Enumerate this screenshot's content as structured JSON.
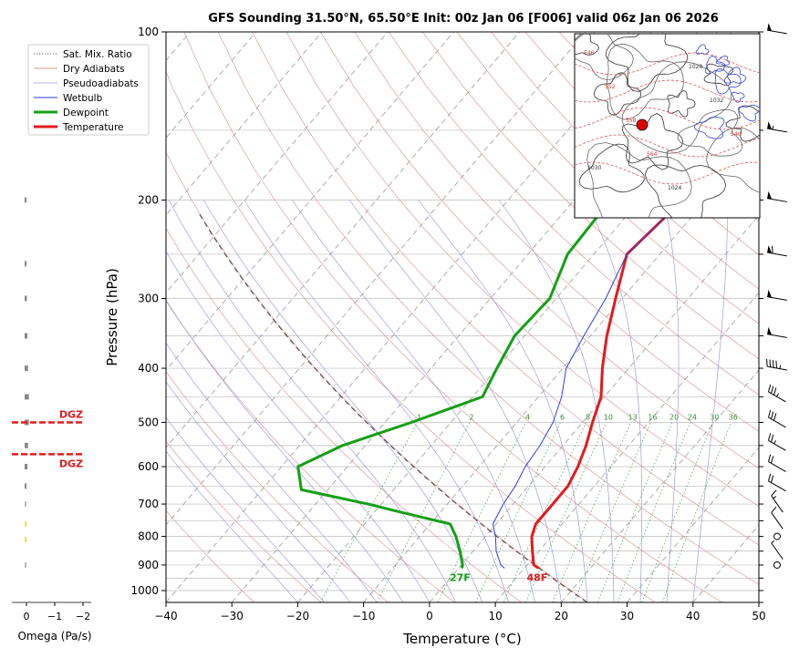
{
  "chart_data": {
    "type": "line",
    "title": "GFS Sounding 31.50°N, 65.50°E Init: 00z Jan 06 [F006] valid 06z Jan 06 2026",
    "xlabel": "Temperature (°C)",
    "ylabel": "Pressure (hPa)",
    "x_ticks": [
      "−40",
      "−30",
      "−20",
      "−10",
      "0",
      "10",
      "20",
      "30",
      "40",
      "50"
    ],
    "x_tick_values": [
      -40,
      -30,
      -20,
      -10,
      0,
      10,
      20,
      30,
      40,
      50
    ],
    "y_ticks": [
      "100",
      "200",
      "300",
      "400",
      "500",
      "600",
      "700",
      "800",
      "900",
      "1000"
    ],
    "y_tick_values": [
      100,
      200,
      300,
      400,
      500,
      600,
      700,
      800,
      900,
      1000
    ],
    "xlim": [
      -40,
      50
    ],
    "ylim": [
      1050,
      100
    ],
    "y_scale": "log",
    "legend": {
      "placement": "upper-left",
      "entries": [
        {
          "label": "Sat. Mix. Ratio",
          "color": "#555555",
          "style": "dotted"
        },
        {
          "label": "Dry Adiabats",
          "color": "#c0392b",
          "style": "solid-thin"
        },
        {
          "label": "Pseudoadiabats",
          "color": "#6a6acf",
          "style": "solid-thin"
        },
        {
          "label": "Wetbulb",
          "color": "#2b3fe0",
          "style": "solid"
        },
        {
          "label": "Dewpoint",
          "color": "#13a013",
          "style": "thick"
        },
        {
          "label": "Temperature",
          "color": "#e31a1c",
          "style": "thick"
        }
      ]
    },
    "series": [
      {
        "name": "Temperature",
        "color": "#e31a1c",
        "points": [
          [
            912,
            12.2
          ],
          [
            900,
            11.0
          ],
          [
            850,
            9.0
          ],
          [
            800,
            7.0
          ],
          [
            760,
            6.0
          ],
          [
            700,
            6.0
          ],
          [
            650,
            6.0
          ],
          [
            600,
            5.0
          ],
          [
            550,
            3.5
          ],
          [
            500,
            1.5
          ],
          [
            450,
            -0.5
          ],
          [
            400,
            -4.0
          ],
          [
            350,
            -7.5
          ],
          [
            300,
            -11.0
          ],
          [
            250,
            -15.0
          ],
          [
            200,
            -13.5
          ],
          [
            150,
            -7.0
          ],
          [
            100,
            1.5
          ]
        ]
      },
      {
        "name": "Dewpoint",
        "color": "#13a013",
        "points": [
          [
            912,
            0.5
          ],
          [
            900,
            0.2
          ],
          [
            850,
            -2.0
          ],
          [
            800,
            -4.5
          ],
          [
            760,
            -7.0
          ],
          [
            720,
            -17.0
          ],
          [
            700,
            -22.0
          ],
          [
            660,
            -34.0
          ],
          [
            600,
            -37.5
          ],
          [
            550,
            -33.5
          ],
          [
            500,
            -26.0
          ],
          [
            450,
            -18.5
          ],
          [
            400,
            -20.0
          ],
          [
            350,
            -21.5
          ],
          [
            300,
            -21.0
          ],
          [
            250,
            -24.0
          ],
          [
            200,
            -24.5
          ],
          [
            150,
            -25.0
          ],
          [
            100,
            -22.0
          ]
        ]
      },
      {
        "name": "Wetbulb",
        "color": "#2b3fe0",
        "points": [
          [
            912,
            7.0
          ],
          [
            900,
            6.0
          ],
          [
            850,
            3.5
          ],
          [
            800,
            1.5
          ],
          [
            760,
            -0.5
          ],
          [
            700,
            -1.5
          ],
          [
            650,
            -2.0
          ],
          [
            600,
            -3.0
          ],
          [
            550,
            -3.5
          ],
          [
            500,
            -4.5
          ],
          [
            450,
            -6.5
          ],
          [
            400,
            -9.5
          ],
          [
            350,
            -11.0
          ],
          [
            300,
            -12.5
          ],
          [
            250,
            -15.0
          ],
          [
            200,
            -13.5
          ],
          [
            150,
            -7.2
          ],
          [
            100,
            1.3
          ]
        ]
      }
    ],
    "annotations": [
      {
        "text": "27F",
        "color": "#13a013"
      },
      {
        "text": "48F",
        "color": "#e31a1c"
      }
    ],
    "mixing_ratio_labels": [
      "1",
      "2",
      "4",
      "6",
      "8",
      "10",
      "13",
      "16",
      "20",
      "24",
      "30",
      "36"
    ],
    "wind_barbs_kts": [
      {
        "p": 100,
        "speed": 50
      },
      {
        "p": 150,
        "speed": 55
      },
      {
        "p": 200,
        "speed": 50
      },
      {
        "p": 250,
        "speed": 60
      },
      {
        "p": 300,
        "speed": 50
      },
      {
        "p": 350,
        "speed": 50
      },
      {
        "p": 400,
        "speed": 45
      },
      {
        "p": 450,
        "speed": 35
      },
      {
        "p": 500,
        "speed": 30
      },
      {
        "p": 550,
        "speed": 25
      },
      {
        "p": 600,
        "speed": 20
      },
      {
        "p": 650,
        "speed": 20
      },
      {
        "p": 700,
        "speed": 15
      },
      {
        "p": 750,
        "speed": 10
      },
      {
        "p": 800,
        "speed": 0
      },
      {
        "p": 850,
        "speed": 5
      },
      {
        "p": 900,
        "speed": 0
      }
    ],
    "omega": {
      "xlabel": "Omega (Pa/s)",
      "x_ticks": [
        "0",
        "−1",
        "−2"
      ],
      "dgz_label": "DGZ",
      "dgz_pressures": [
        500,
        570
      ],
      "bars": [
        {
          "p": 200,
          "v": 0.05,
          "color": "#888888"
        },
        {
          "p": 260,
          "v": 0.05,
          "color": "#888888"
        },
        {
          "p": 300,
          "v": 0.08,
          "color": "#888888"
        },
        {
          "p": 350,
          "v": 0.1,
          "color": "#888888"
        },
        {
          "p": 400,
          "v": 0.12,
          "color": "#888888"
        },
        {
          "p": 450,
          "v": 0.15,
          "color": "#888888"
        },
        {
          "p": 500,
          "v": 0.15,
          "color": "#888888"
        },
        {
          "p": 550,
          "v": 0.12,
          "color": "#888888"
        },
        {
          "p": 600,
          "v": 0.1,
          "color": "#888888"
        },
        {
          "p": 650,
          "v": 0.05,
          "color": "#888888"
        },
        {
          "p": 700,
          "v": 0.04,
          "color": "#bbbbbb"
        },
        {
          "p": 760,
          "v": 0.03,
          "color": "#e8e840"
        },
        {
          "p": 810,
          "v": 0.03,
          "color": "#e8e840"
        },
        {
          "p": 900,
          "v": 0.02,
          "color": "#bbbbbb"
        }
      ]
    },
    "inset_map": {
      "description_contour_labels": [
        "546",
        "552",
        "558",
        "564",
        "1024",
        "1028",
        "1032",
        "540",
        "1030"
      ],
      "marker_color": "#dd0000"
    }
  }
}
